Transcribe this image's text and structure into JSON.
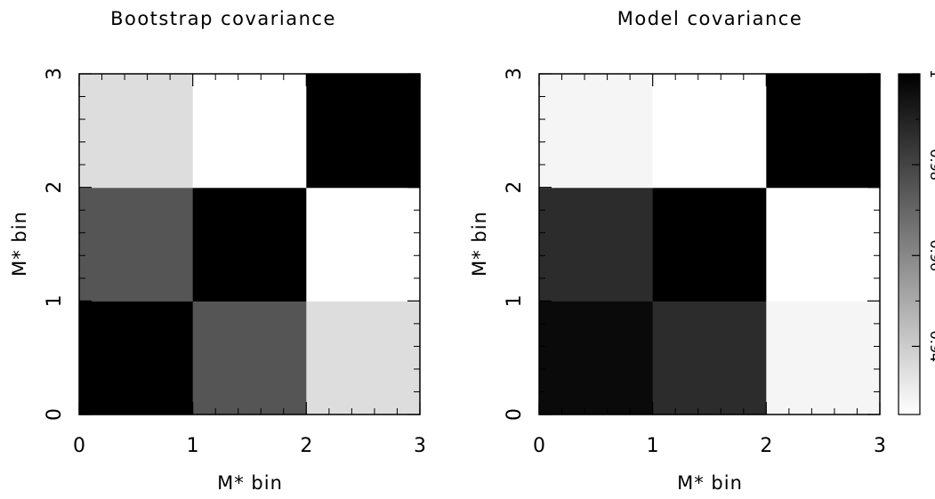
{
  "chart_data": [
    {
      "type": "heatmap",
      "title": "Bootstrap covariance",
      "xlabel": "M* bin",
      "ylabel": "M* bin",
      "xlim": [
        0,
        3
      ],
      "ylim": [
        0,
        3
      ],
      "xticks": [
        "0",
        "1",
        "2",
        "3"
      ],
      "yticks": [
        "0",
        "1",
        "2",
        "3"
      ],
      "grid": false,
      "values": [
        [
          1.0,
          0.975,
          0.935
        ],
        [
          0.975,
          1.0,
          0.925
        ],
        [
          0.935,
          0.925,
          1.0
        ]
      ]
    },
    {
      "type": "heatmap",
      "title": "Model covariance",
      "xlabel": "M* bin",
      "ylabel": "M* bin",
      "xlim": [
        0,
        3
      ],
      "ylim": [
        0,
        3
      ],
      "xticks": [
        "0",
        "1",
        "2",
        "3"
      ],
      "yticks": [
        "0",
        "1",
        "2",
        "3"
      ],
      "grid": false,
      "values": [
        [
          0.997,
          0.987,
          0.928
        ],
        [
          0.987,
          1.0,
          0.925
        ],
        [
          0.928,
          0.925,
          1.0
        ]
      ]
    }
  ],
  "colorbar": {
    "range": [
      0.925,
      1.0
    ],
    "colors": {
      "low": "#ffffff",
      "high": "#000000"
    },
    "tick_labels": [
      "0.94",
      "0.96",
      "0.98",
      "1"
    ],
    "tick_values": [
      0.94,
      0.96,
      0.98,
      1.0
    ],
    "minor_tick_values": [
      0.95,
      0.97,
      0.99
    ]
  }
}
